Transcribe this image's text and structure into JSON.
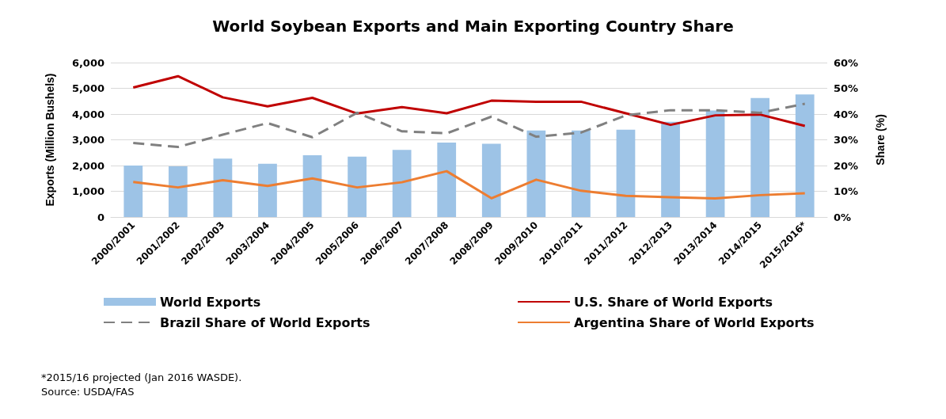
{
  "chart_data": {
    "type": "bar",
    "title": "World Soybean Exports and Main Exporting Country Share",
    "ylabel": "Exports (Million Bushels)",
    "y2label": "Share (%)",
    "categories": [
      "2000/2001",
      "2001/2002",
      "2002/2003",
      "2003/2004",
      "2004/2005",
      "2005/2006",
      "2006/2007",
      "2007/2008",
      "2008/2009",
      "2009/2010",
      "2010/2011",
      "2011/2012",
      "2012/2013",
      "2013/2014",
      "2014/2015",
      "2015/2016*"
    ],
    "series": [
      {
        "name": "World Exports",
        "color": "#9dc3e6",
        "values": [
          2000,
          1970,
          2270,
          2070,
          2400,
          2350,
          2610,
          2890,
          2850,
          3360,
          3360,
          3390,
          3700,
          4140,
          4620,
          4760
        ]
      },
      {
        "name": "U.S. Share of World Exports",
        "type": "line",
        "axis": "y2",
        "color": "#c00000",
        "line_style": "solid",
        "values": [
          50.3,
          54.7,
          46.5,
          43,
          46.3,
          40.2,
          42.7,
          40.3,
          45.2,
          44.8,
          44.8,
          40.3,
          35.8,
          39.5,
          39.8,
          35.4
        ]
      },
      {
        "name": "Brazil Share of World Exports",
        "type": "line",
        "axis": "y2",
        "color": "#808080",
        "line_style": "dashed",
        "values": [
          28.8,
          27.2,
          32,
          36.5,
          31,
          40.5,
          33.3,
          32.5,
          39,
          31.2,
          32.8,
          39.5,
          41.5,
          41.5,
          40.5,
          44
        ]
      },
      {
        "name": "Argentina Share of World Exports",
        "type": "line",
        "axis": "y2",
        "color": "#ed7d31",
        "line_style": "solid",
        "values": [
          13.6,
          11.5,
          14.3,
          12.1,
          15,
          11.5,
          13.5,
          17.8,
          7.3,
          14.5,
          10.2,
          8.2,
          7.7,
          7.2,
          8.5,
          9.2
        ]
      }
    ],
    "ylim": [
      0,
      6000
    ],
    "yticks": [
      0,
      {
        "value": 1000,
        "label": "1,000"
      },
      {
        "value": 2000,
        "label": "2,000"
      },
      {
        "value": 3000,
        "label": "3,000"
      },
      {
        "value": 4000,
        "label": "4,000"
      },
      {
        "value": 5000,
        "label": "5,000"
      },
      {
        "value": 6000,
        "label": "6,000"
      }
    ],
    "y2lim": [
      0,
      60
    ],
    "y2ticks": [
      {
        "value": 0,
        "label": "0%"
      },
      {
        "value": 10,
        "label": "10%"
      },
      {
        "value": 20,
        "label": "20%"
      },
      {
        "value": 30,
        "label": "30%"
      },
      {
        "value": 40,
        "label": "40%"
      },
      {
        "value": 50,
        "label": "50%"
      },
      {
        "value": 60,
        "label": "60%"
      }
    ],
    "grid": "y",
    "legend": "bottom",
    "marker": "none",
    "annotations": [
      "*2015/16 projected (Jan 2016 WASDE).",
      "Source: USDA/FAS"
    ]
  }
}
